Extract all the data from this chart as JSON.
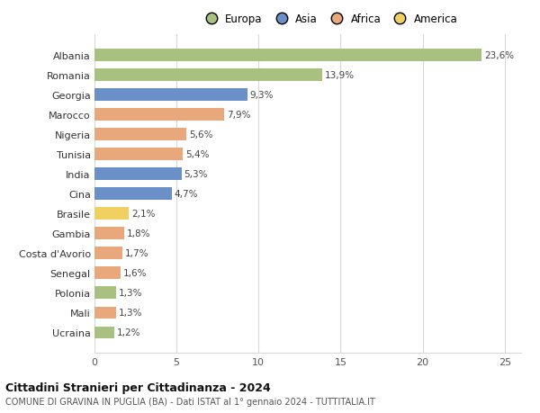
{
  "countries": [
    "Albania",
    "Romania",
    "Georgia",
    "Marocco",
    "Nigeria",
    "Tunisia",
    "India",
    "Cina",
    "Brasile",
    "Gambia",
    "Costa d'Avorio",
    "Senegal",
    "Polonia",
    "Mali",
    "Ucraina"
  ],
  "values": [
    23.6,
    13.9,
    9.3,
    7.9,
    5.6,
    5.4,
    5.3,
    4.7,
    2.1,
    1.8,
    1.7,
    1.6,
    1.3,
    1.3,
    1.2
  ],
  "labels": [
    "23,6%",
    "13,9%",
    "9,3%",
    "7,9%",
    "5,6%",
    "5,4%",
    "5,3%",
    "4,7%",
    "2,1%",
    "1,8%",
    "1,7%",
    "1,6%",
    "1,3%",
    "1,3%",
    "1,2%"
  ],
  "colors": [
    "#a8c080",
    "#a8c080",
    "#6b8fc7",
    "#e8a87c",
    "#e8a87c",
    "#e8a87c",
    "#6b8fc7",
    "#6b8fc7",
    "#f0d060",
    "#e8a87c",
    "#e8a87c",
    "#e8a87c",
    "#a8c080",
    "#e8a87c",
    "#a8c080"
  ],
  "legend_labels": [
    "Europa",
    "Asia",
    "Africa",
    "America"
  ],
  "legend_colors": [
    "#a8c080",
    "#6b8fc7",
    "#e8a87c",
    "#f0d060"
  ],
  "title_bold": "Cittadini Stranieri per Cittadinanza - 2024",
  "title_sub": "COMUNE DI GRAVINA IN PUGLIA (BA) - Dati ISTAT al 1° gennaio 2024 - TUTTITALIA.IT",
  "xlim": [
    0,
    26
  ],
  "xticks": [
    0,
    5,
    10,
    15,
    20,
    25
  ],
  "bg_color": "#ffffff",
  "grid_color": "#d8d8d8",
  "bar_height": 0.62
}
